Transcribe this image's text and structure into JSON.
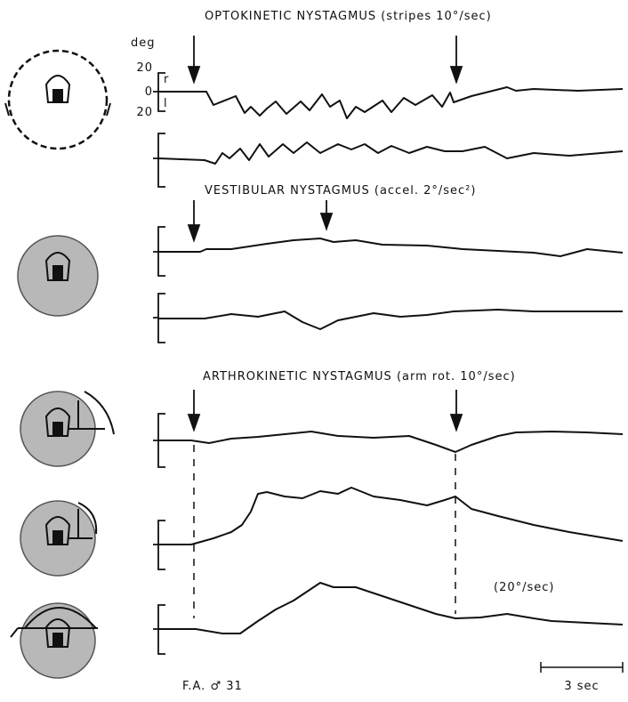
{
  "figure": {
    "titles": [
      "OPTOKINETIC NYSTAGMUS (stripes 10°/sec)",
      "VESTIBULAR NYSTAGMUS (accel. 2°/sec²)",
      "ARTHROKINETIC NYSTAGMUS (arm rot. 10°/sec)"
    ],
    "axis": {
      "unit": "deg",
      "ticks": [
        "20",
        "0",
        "20"
      ],
      "right": "r",
      "left": "l"
    },
    "speed_note": "(20°/sec)",
    "subject": "F.A. ♂ 31",
    "scale_bar": "3 sec"
  }
}
